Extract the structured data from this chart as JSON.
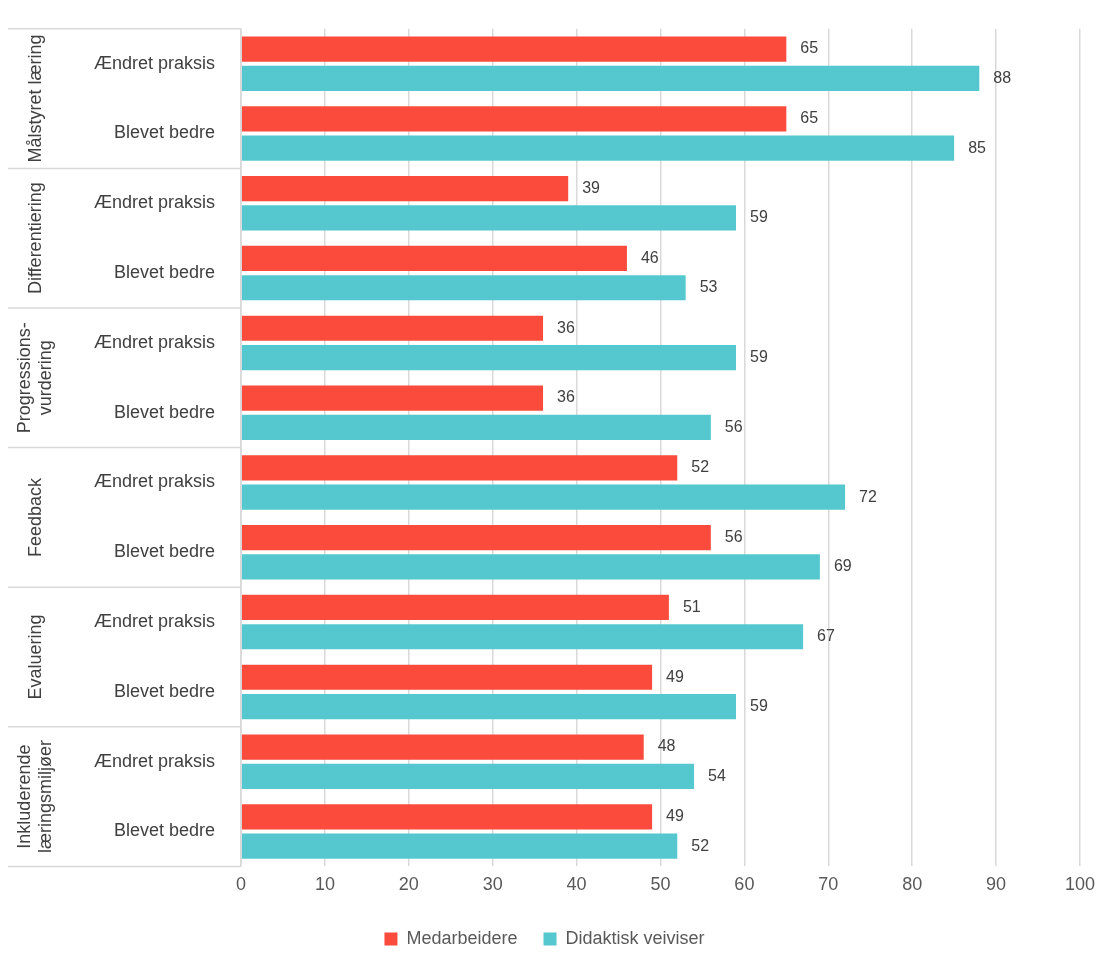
{
  "chart_data": {
    "type": "bar",
    "orientation": "horizontal",
    "categories": [
      "Ændret praksis",
      "Blevet bedre",
      "Ændret praksis",
      "Blevet bedre",
      "Ændret praksis",
      "Blevet bedre",
      "Ændret praksis",
      "Blevet bedre",
      "Ændret praksis",
      "Blevet bedre",
      "Ændret praksis",
      "Blevet bedre"
    ],
    "annotations": [
      "Målstyret læring",
      "Differentiering",
      "Progressions-vurdering",
      "Feedback",
      "Evaluering",
      "Inkluderende læringsmiljøer"
    ],
    "series": [
      {
        "name": "Medarbeidere",
        "color": "#fa4b3c",
        "values": [
          65,
          65,
          39,
          46,
          36,
          36,
          52,
          56,
          51,
          49,
          48,
          49
        ]
      },
      {
        "name": "Didaktisk veiviser",
        "color": "#55c8cf",
        "values": [
          88,
          85,
          59,
          53,
          59,
          56,
          72,
          69,
          67,
          59,
          54,
          52
        ]
      }
    ],
    "xlim": [
      0,
      100
    ],
    "xticks": [
      0,
      10,
      20,
      30,
      40,
      50,
      60,
      70,
      80,
      90,
      100
    ],
    "grid": "x",
    "legend": "bottom",
    "data_labels": true
  }
}
